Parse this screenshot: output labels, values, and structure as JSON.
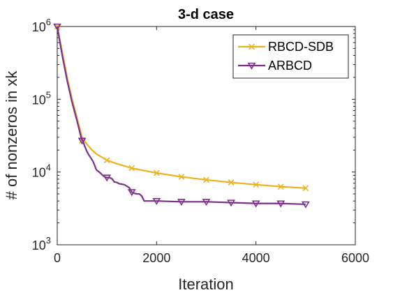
{
  "chart_data": {
    "type": "line",
    "title": "3-d case",
    "xlabel": "Iteration",
    "ylabel": "# of nonzeros in xk",
    "xlim": [
      0,
      6000
    ],
    "ylim": [
      1000,
      1000000
    ],
    "yscale": "log",
    "grid": false,
    "legend_position": "top-right",
    "x_ticks": [
      0,
      2000,
      4000,
      6000
    ],
    "x_tick_labels": [
      "0",
      "2000",
      "4000",
      "6000"
    ],
    "y_ticks": [
      1000,
      10000,
      100000,
      1000000
    ],
    "y_tick_labels": [
      {
        "base": "10",
        "exp": "3"
      },
      {
        "base": "10",
        "exp": "4"
      },
      {
        "base": "10",
        "exp": "5"
      },
      {
        "base": "10",
        "exp": "6"
      }
    ],
    "series": [
      {
        "name": "RBCD-SDB",
        "color": "#EDB120",
        "marker": "x",
        "line": [
          [
            0,
            1000000
          ],
          [
            100,
            450000
          ],
          [
            200,
            200000
          ],
          [
            300,
            100000
          ],
          [
            400,
            55000
          ],
          [
            500,
            30000
          ],
          [
            600,
            24000
          ],
          [
            700,
            20000
          ],
          [
            800,
            17500
          ],
          [
            1000,
            14500
          ],
          [
            1200,
            13000
          ],
          [
            1500,
            11300
          ],
          [
            2000,
            9700
          ],
          [
            2500,
            8600
          ],
          [
            3000,
            7800
          ],
          [
            3500,
            7200
          ],
          [
            4000,
            6700
          ],
          [
            4500,
            6300
          ],
          [
            5000,
            6000
          ]
        ],
        "markers": [
          [
            0,
            1000000
          ],
          [
            500,
            27000
          ],
          [
            1000,
            14500
          ],
          [
            1500,
            11300
          ],
          [
            2000,
            9700
          ],
          [
            2500,
            8600
          ],
          [
            3000,
            7800
          ],
          [
            3500,
            7200
          ],
          [
            4000,
            6700
          ],
          [
            4500,
            6300
          ],
          [
            5000,
            6000
          ]
        ]
      },
      {
        "name": "ARBCD",
        "color": "#7E2F8E",
        "marker": "down-triangle",
        "line": [
          [
            0,
            1000000
          ],
          [
            100,
            400000
          ],
          [
            200,
            180000
          ],
          [
            300,
            90000
          ],
          [
            400,
            50000
          ],
          [
            480,
            30000
          ],
          [
            520,
            26000
          ],
          [
            560,
            22000
          ],
          [
            600,
            19000
          ],
          [
            640,
            17000
          ],
          [
            680,
            15500
          ],
          [
            720,
            14000
          ],
          [
            750,
            12500
          ],
          [
            780,
            11000
          ],
          [
            800,
            10500
          ],
          [
            830,
            10200
          ],
          [
            860,
            9800
          ],
          [
            900,
            9200
          ],
          [
            950,
            8600
          ],
          [
            1000,
            8400
          ],
          [
            1050,
            8400
          ],
          [
            1100,
            8100
          ],
          [
            1150,
            7300
          ],
          [
            1200,
            7200
          ],
          [
            1250,
            6900
          ],
          [
            1300,
            6800
          ],
          [
            1350,
            6700
          ],
          [
            1400,
            6400
          ],
          [
            1450,
            6100
          ],
          [
            1500,
            5300
          ],
          [
            1550,
            5100
          ],
          [
            1600,
            5000
          ],
          [
            1650,
            5000
          ],
          [
            1700,
            4700
          ],
          [
            1750,
            4000
          ],
          [
            2000,
            4000
          ],
          [
            2500,
            3900
          ],
          [
            3000,
            3900
          ],
          [
            3500,
            3800
          ],
          [
            4000,
            3700
          ],
          [
            4500,
            3700
          ],
          [
            5000,
            3600
          ]
        ],
        "markers": [
          [
            0,
            1000000
          ],
          [
            500,
            27000
          ],
          [
            1000,
            8400
          ],
          [
            1500,
            5300
          ],
          [
            2000,
            4000
          ],
          [
            2500,
            3900
          ],
          [
            3000,
            3900
          ],
          [
            3500,
            3800
          ],
          [
            4000,
            3700
          ],
          [
            4500,
            3700
          ],
          [
            5000,
            3600
          ]
        ]
      }
    ]
  }
}
